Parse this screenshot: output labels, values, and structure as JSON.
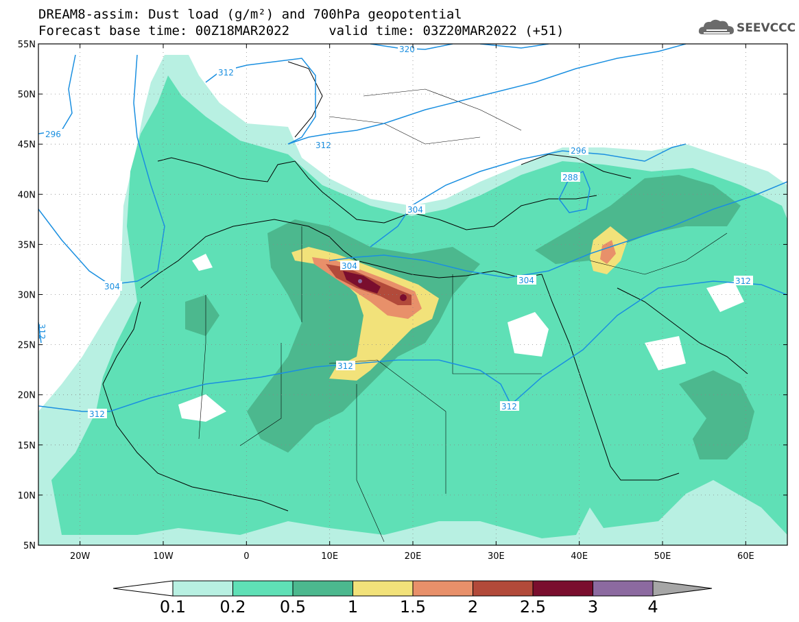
{
  "header": {
    "line1": "DREAM8-assim: Dust load (g/m²) and 700hPa geopotential",
    "line2": "Forecast base time: 00Z18MAR2022     valid time: 03Z20MAR2022 (+51)"
  },
  "logo": {
    "text": "SEEVCCC",
    "icon": "cloud-logo-icon"
  },
  "map": {
    "lon_ticks": [
      "20W",
      "10W",
      "0",
      "10E",
      "20E",
      "30E",
      "40E",
      "50E",
      "60E"
    ],
    "lat_ticks": [
      "55N",
      "50N",
      "45N",
      "40N",
      "35N",
      "30N",
      "25N",
      "20N",
      "15N",
      "10N",
      "5N"
    ],
    "lon_range": [
      -25,
      65
    ],
    "lat_range": [
      5,
      55
    ],
    "contour_labels": [
      "320",
      "312",
      "296",
      "312",
      "296",
      "288",
      "304",
      "304",
      "304",
      "304",
      "312",
      "312",
      "312",
      "312",
      "312"
    ]
  },
  "colorbar": {
    "labels": [
      "0.1",
      "0.2",
      "0.5",
      "1",
      "1.5",
      "2",
      "2.5",
      "3",
      "4"
    ],
    "colors": [
      "#b8f0e2",
      "#5fe0b6",
      "#4cb88e",
      "#f2e27a",
      "#e8906a",
      "#b24a3a",
      "#7a0e2e",
      "#8c6aa0",
      "#a6a6a6"
    ],
    "under_color": "#ffffff",
    "over_color": "#a6a6a6"
  }
}
